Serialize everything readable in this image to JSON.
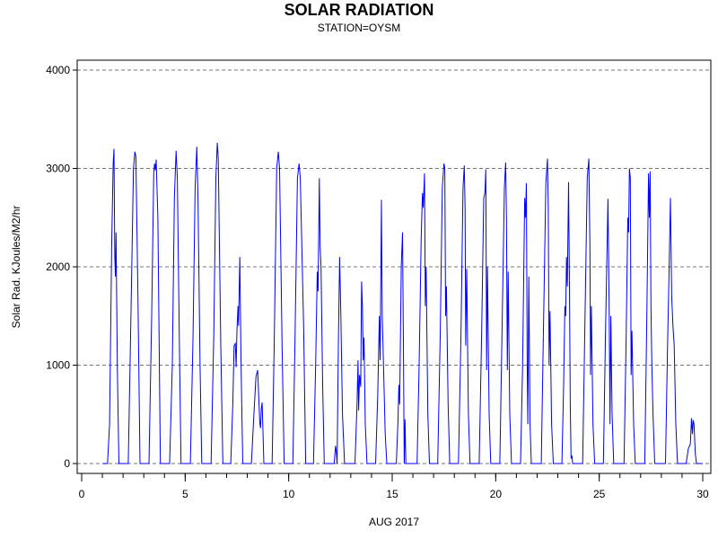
{
  "chart_data": {
    "type": "line",
    "title": "SOLAR RADIATION",
    "subtitle": "STATION=OYSM",
    "xlabel": "AUG 2017",
    "ylabel": "Solar Rad. KJoules/M2/hr",
    "xlim": [
      0,
      30
    ],
    "ylim": [
      0,
      4000
    ],
    "xticks": [
      0,
      5,
      10,
      15,
      20,
      25,
      30
    ],
    "yticks": [
      0,
      1000,
      2000,
      3000,
      4000
    ],
    "grid": "horizontal-dashed",
    "series_color": "#0000ff",
    "days": [
      {
        "day": 1,
        "points": [
          [
            1.25,
            0
          ],
          [
            1.35,
            400
          ],
          [
            1.45,
            2200
          ],
          [
            1.52,
            3050
          ],
          [
            1.56,
            3200
          ],
          [
            1.6,
            2100
          ],
          [
            1.63,
            1900
          ],
          [
            1.66,
            2350
          ],
          [
            1.72,
            1000
          ],
          [
            1.8,
            0
          ]
        ]
      },
      {
        "day": 2,
        "points": [
          [
            2.25,
            0
          ],
          [
            2.38,
            1500
          ],
          [
            2.5,
            3000
          ],
          [
            2.57,
            3170
          ],
          [
            2.62,
            3120
          ],
          [
            2.72,
            1700
          ],
          [
            2.82,
            0
          ]
        ]
      },
      {
        "day": 3,
        "points": [
          [
            3.25,
            0
          ],
          [
            3.38,
            1500
          ],
          [
            3.48,
            2950
          ],
          [
            3.52,
            3050
          ],
          [
            3.56,
            2980
          ],
          [
            3.6,
            3090
          ],
          [
            3.68,
            2500
          ],
          [
            3.8,
            0
          ]
        ]
      },
      {
        "day": 4,
        "points": [
          [
            4.25,
            0
          ],
          [
            4.38,
            1000
          ],
          [
            4.48,
            2700
          ],
          [
            4.56,
            3180
          ],
          [
            4.62,
            2900
          ],
          [
            4.72,
            1200
          ],
          [
            4.8,
            0
          ]
        ]
      },
      {
        "day": 5,
        "points": [
          [
            5.25,
            0
          ],
          [
            5.38,
            1300
          ],
          [
            5.48,
            2800
          ],
          [
            5.56,
            3220
          ],
          [
            5.62,
            2700
          ],
          [
            5.72,
            1000
          ],
          [
            5.8,
            0
          ]
        ]
      },
      {
        "day": 6,
        "points": [
          [
            6.25,
            0
          ],
          [
            6.38,
            1300
          ],
          [
            6.48,
            2900
          ],
          [
            6.55,
            3260
          ],
          [
            6.6,
            3100
          ],
          [
            6.72,
            1200
          ],
          [
            6.82,
            0
          ]
        ]
      },
      {
        "day": 7,
        "points": [
          [
            7.2,
            0
          ],
          [
            7.3,
            600
          ],
          [
            7.36,
            1200
          ],
          [
            7.42,
            1220
          ],
          [
            7.46,
            980
          ],
          [
            7.5,
            1350
          ],
          [
            7.55,
            1600
          ],
          [
            7.58,
            1400
          ],
          [
            7.64,
            2100
          ],
          [
            7.7,
            1000
          ],
          [
            7.78,
            0
          ]
        ]
      },
      {
        "day": 8,
        "points": [
          [
            8.2,
            0
          ],
          [
            8.32,
            500
          ],
          [
            8.42,
            880
          ],
          [
            8.5,
            950
          ],
          [
            8.55,
            700
          ],
          [
            8.6,
            420
          ],
          [
            8.64,
            360
          ],
          [
            8.68,
            560
          ],
          [
            8.72,
            620
          ],
          [
            8.8,
            0
          ]
        ]
      },
      {
        "day": 9,
        "points": [
          [
            9.2,
            0
          ],
          [
            9.3,
            1200
          ],
          [
            9.42,
            3000
          ],
          [
            9.5,
            3170
          ],
          [
            9.56,
            3000
          ],
          [
            9.68,
            1200
          ],
          [
            9.78,
            0
          ]
        ]
      },
      {
        "day": 10,
        "points": [
          [
            10.2,
            0
          ],
          [
            10.3,
            1200
          ],
          [
            10.42,
            2900
          ],
          [
            10.5,
            3050
          ],
          [
            10.56,
            2900
          ],
          [
            10.72,
            1400
          ],
          [
            10.82,
            0
          ]
        ]
      },
      {
        "day": 11,
        "points": [
          [
            11.2,
            0
          ],
          [
            11.3,
            1000
          ],
          [
            11.38,
            1950
          ],
          [
            11.42,
            1750
          ],
          [
            11.48,
            2900
          ],
          [
            11.52,
            2200
          ],
          [
            11.56,
            2000
          ],
          [
            11.64,
            800
          ],
          [
            11.72,
            0
          ]
        ]
      },
      {
        "day": 12,
        "points": [
          [
            12.2,
            0
          ],
          [
            12.26,
            180
          ],
          [
            12.3,
            120
          ],
          [
            12.34,
            0
          ],
          [
            12.4,
            1200
          ],
          [
            12.46,
            2100
          ],
          [
            12.52,
            1500
          ],
          [
            12.6,
            500
          ],
          [
            12.7,
            0
          ]
        ]
      },
      {
        "day": 13,
        "points": [
          [
            13.2,
            0
          ],
          [
            13.3,
            600
          ],
          [
            13.35,
            1050
          ],
          [
            13.38,
            540
          ],
          [
            13.42,
            900
          ],
          [
            13.48,
            780
          ],
          [
            13.52,
            1850
          ],
          [
            13.56,
            1600
          ],
          [
            13.6,
            1050
          ],
          [
            13.64,
            1280
          ],
          [
            13.7,
            400
          ],
          [
            13.78,
            0
          ]
        ]
      },
      {
        "day": 14,
        "points": [
          [
            14.2,
            0
          ],
          [
            14.3,
            700
          ],
          [
            14.38,
            1500
          ],
          [
            14.42,
            1050
          ],
          [
            14.48,
            2680
          ],
          [
            14.52,
            1500
          ],
          [
            14.58,
            1000
          ],
          [
            14.66,
            300
          ],
          [
            14.74,
            0
          ]
        ]
      },
      {
        "day": 15,
        "points": [
          [
            15.2,
            0
          ],
          [
            15.28,
            450
          ],
          [
            15.32,
            800
          ],
          [
            15.36,
            600
          ],
          [
            15.44,
            2000
          ],
          [
            15.5,
            2350
          ],
          [
            15.54,
            1200
          ],
          [
            15.58,
            0
          ],
          [
            15.62,
            450
          ],
          [
            15.66,
            0
          ]
        ]
      },
      {
        "day": 16,
        "points": [
          [
            16.2,
            0
          ],
          [
            16.3,
            1000
          ],
          [
            16.4,
            2300
          ],
          [
            16.46,
            2750
          ],
          [
            16.5,
            2600
          ],
          [
            16.56,
            2950
          ],
          [
            16.6,
            1600
          ],
          [
            16.64,
            2000
          ],
          [
            16.72,
            500
          ],
          [
            16.8,
            0
          ]
        ]
      },
      {
        "day": 17,
        "points": [
          [
            17.2,
            0
          ],
          [
            17.32,
            1300
          ],
          [
            17.42,
            2800
          ],
          [
            17.5,
            3050
          ],
          [
            17.54,
            3000
          ],
          [
            17.58,
            1500
          ],
          [
            17.62,
            1800
          ],
          [
            17.7,
            600
          ],
          [
            17.78,
            0
          ]
        ]
      },
      {
        "day": 18,
        "points": [
          [
            18.2,
            0
          ],
          [
            18.32,
            1300
          ],
          [
            18.42,
            2800
          ],
          [
            18.48,
            3030
          ],
          [
            18.52,
            2600
          ],
          [
            18.55,
            1200
          ],
          [
            18.6,
            1980
          ],
          [
            18.68,
            500
          ],
          [
            18.76,
            0
          ]
        ]
      },
      {
        "day": 19,
        "points": [
          [
            19.2,
            0
          ],
          [
            19.32,
            1300
          ],
          [
            19.42,
            2700
          ],
          [
            19.48,
            2750
          ],
          [
            19.52,
            2990
          ],
          [
            19.56,
            950
          ],
          [
            19.6,
            2000
          ],
          [
            19.68,
            500
          ],
          [
            19.76,
            0
          ]
        ]
      },
      {
        "day": 20,
        "points": [
          [
            20.2,
            0
          ],
          [
            20.3,
            1300
          ],
          [
            20.42,
            2800
          ],
          [
            20.48,
            3060
          ],
          [
            20.52,
            2500
          ],
          [
            20.56,
            950
          ],
          [
            20.6,
            1950
          ],
          [
            20.68,
            500
          ],
          [
            20.76,
            0
          ]
        ]
      },
      {
        "day": 21,
        "points": [
          [
            21.2,
            0
          ],
          [
            21.3,
            1000
          ],
          [
            21.4,
            2700
          ],
          [
            21.44,
            2500
          ],
          [
            21.48,
            2850
          ],
          [
            21.52,
            1000
          ],
          [
            21.55,
            400
          ],
          [
            21.6,
            1900
          ],
          [
            21.66,
            400
          ],
          [
            21.72,
            0
          ]
        ]
      },
      {
        "day": 22,
        "points": [
          [
            22.2,
            0
          ],
          [
            22.3,
            1300
          ],
          [
            22.42,
            2850
          ],
          [
            22.5,
            3100
          ],
          [
            22.54,
            2600
          ],
          [
            22.58,
            1000
          ],
          [
            22.62,
            1550
          ],
          [
            22.7,
            400
          ],
          [
            22.78,
            0
          ]
        ]
      },
      {
        "day": 23,
        "points": [
          [
            23.2,
            0
          ],
          [
            23.28,
            800
          ],
          [
            23.34,
            1600
          ],
          [
            23.38,
            1500
          ],
          [
            23.42,
            2100
          ],
          [
            23.46,
            1800
          ],
          [
            23.52,
            2860
          ],
          [
            23.56,
            1800
          ],
          [
            23.6,
            600
          ],
          [
            23.64,
            50
          ],
          [
            23.68,
            80
          ],
          [
            23.72,
            0
          ]
        ]
      },
      {
        "day": 24,
        "points": [
          [
            24.2,
            0
          ],
          [
            24.3,
            1300
          ],
          [
            24.42,
            2900
          ],
          [
            24.5,
            3100
          ],
          [
            24.55,
            2200
          ],
          [
            24.58,
            900
          ],
          [
            24.62,
            1600
          ],
          [
            24.7,
            400
          ],
          [
            24.78,
            0
          ]
        ]
      },
      {
        "day": 25,
        "points": [
          [
            25.2,
            0
          ],
          [
            25.3,
            1300
          ],
          [
            25.42,
            2690
          ],
          [
            25.48,
            1600
          ],
          [
            25.52,
            400
          ],
          [
            25.56,
            1500
          ],
          [
            25.62,
            500
          ],
          [
            25.7,
            0
          ]
        ]
      },
      {
        "day": 26,
        "points": [
          [
            26.2,
            0
          ],
          [
            26.3,
            1300
          ],
          [
            26.38,
            2500
          ],
          [
            26.42,
            2350
          ],
          [
            26.46,
            3000
          ],
          [
            26.5,
            2900
          ],
          [
            26.54,
            900
          ],
          [
            26.58,
            1350
          ],
          [
            26.66,
            400
          ],
          [
            26.74,
            0
          ]
        ]
      },
      {
        "day": 27,
        "points": [
          [
            27.2,
            0
          ],
          [
            27.3,
            1500
          ],
          [
            27.38,
            2950
          ],
          [
            27.42,
            2500
          ],
          [
            27.46,
            2970
          ],
          [
            27.5,
            1600
          ],
          [
            27.54,
            1000
          ],
          [
            27.6,
            500
          ],
          [
            27.68,
            0
          ]
        ]
      },
      {
        "day": 28,
        "points": [
          [
            28.2,
            0
          ],
          [
            28.3,
            1200
          ],
          [
            28.38,
            2000
          ],
          [
            28.44,
            2700
          ],
          [
            28.5,
            1700
          ],
          [
            28.56,
            1400
          ],
          [
            28.62,
            1200
          ],
          [
            28.7,
            400
          ],
          [
            28.78,
            0
          ]
        ]
      },
      {
        "day": 29,
        "points": [
          [
            29.2,
            0
          ],
          [
            29.3,
            150
          ],
          [
            29.4,
            200
          ],
          [
            29.46,
            460
          ],
          [
            29.5,
            300
          ],
          [
            29.54,
            440
          ],
          [
            29.58,
            400
          ],
          [
            29.64,
            100
          ],
          [
            29.7,
            0
          ]
        ]
      }
    ]
  }
}
